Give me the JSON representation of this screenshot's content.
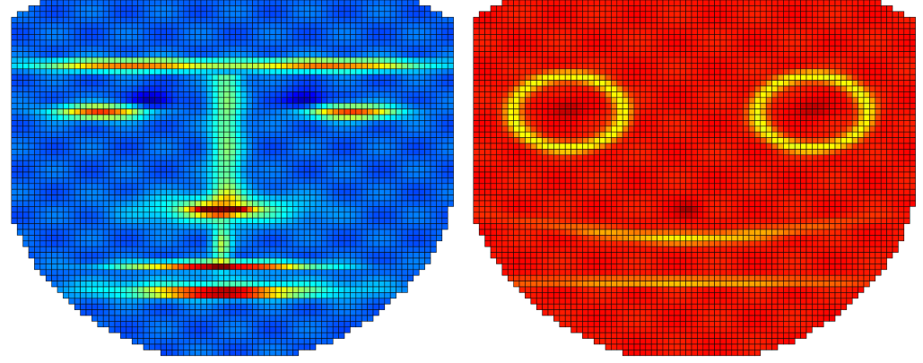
{
  "figure": {
    "panels": [
      {
        "id": "left",
        "colormap": "jet",
        "base_color": "#1f64b8",
        "edge_color": "#0a0a0a",
        "features": [
          {
            "kind": "brow-left",
            "intensity": 0.55
          },
          {
            "kind": "brow-right",
            "intensity": 0.55
          },
          {
            "kind": "eye-left",
            "intensity": 0.6
          },
          {
            "kind": "eye-right",
            "intensity": 0.6
          },
          {
            "kind": "eye-corner-left",
            "intensity": 0.05
          },
          {
            "kind": "eye-corner-right",
            "intensity": 0.05
          },
          {
            "kind": "nose-bridge",
            "intensity": 0.45
          },
          {
            "kind": "nose-tip",
            "intensity": 0.9
          },
          {
            "kind": "philtrum",
            "intensity": 0.55
          },
          {
            "kind": "upper-lip",
            "intensity": 0.75
          },
          {
            "kind": "mouth",
            "intensity": 0.95
          }
        ]
      },
      {
        "id": "right",
        "colormap": "jet",
        "base_color": "#c8401c",
        "edge_color": "#0a0a0a",
        "features": [
          {
            "kind": "eye-ring-left",
            "intensity": 0.7
          },
          {
            "kind": "eye-ring-right",
            "intensity": 0.7
          },
          {
            "kind": "eye-spot-left",
            "intensity": 0.05
          },
          {
            "kind": "eye-spot-right",
            "intensity": 0.05
          },
          {
            "kind": "nose-spot",
            "intensity": 0.05
          },
          {
            "kind": "cheek-line",
            "intensity": 0.7
          },
          {
            "kind": "mouth-line",
            "intensity": 0.7
          }
        ]
      }
    ]
  }
}
